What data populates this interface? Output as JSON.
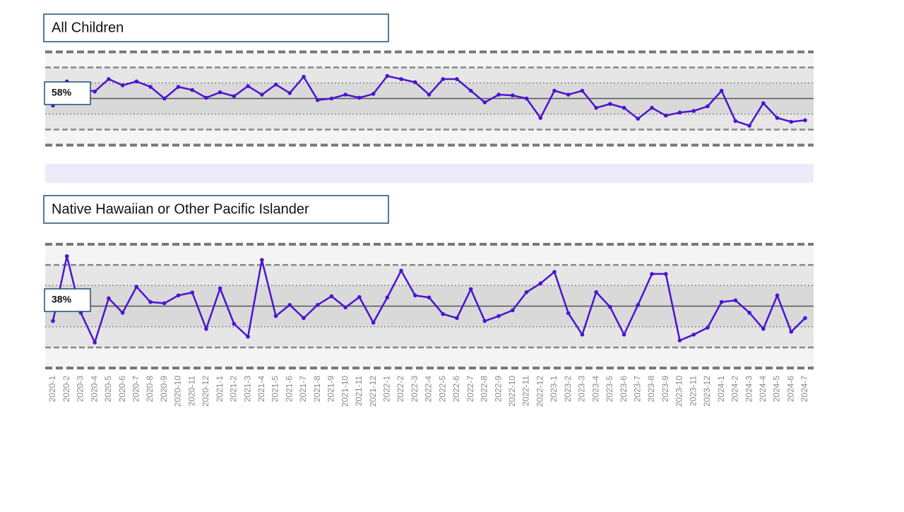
{
  "chart_data": [
    {
      "type": "line",
      "title": "All Children",
      "color": "#4b14cf",
      "values": [
        57.1,
        60.2,
        59.3,
        58.9,
        60.5,
        59.7,
        60.2,
        59.5,
        58,
        59.5,
        59.1,
        58.1,
        58.8,
        58.3,
        59.6,
        58.5,
        59.8,
        58.7,
        60.8,
        57.8,
        58,
        58.5,
        58.1,
        58.6,
        60.9,
        60.5,
        60.1,
        58.5,
        60.5,
        60.5,
        59,
        57.5,
        58.5,
        58.4,
        58,
        55.5,
        59,
        58.5,
        59,
        56.8,
        57.3,
        56.8,
        55.4,
        56.8,
        55.8,
        56.2,
        56.4,
        57,
        59,
        55.1,
        54.5,
        57.4,
        55.5,
        55,
        55.2
      ],
      "ylim": [
        51.5,
        64.5
      ],
      "center": 58,
      "center_label": "58%",
      "limits": [
        52,
        54,
        56,
        60,
        62,
        64
      ]
    },
    {
      "type": "line",
      "title": "Native Hawaiian or Other Pacific Islander",
      "color": "#4b14cf",
      "categories": [
        "2020-1",
        "2020-2",
        "2020-3",
        "2020-4",
        "2020-5",
        "2020-6",
        "2020-7",
        "2020-8",
        "2020-9",
        "2020-10",
        "2020-11",
        "2020-12",
        "2021-1",
        "2021-2",
        "2021-3",
        "2021-4",
        "2021-5",
        "2021-6",
        "2021-7",
        "2021-8",
        "2021-9",
        "2021-10",
        "2021-11",
        "2021-12",
        "2022-1",
        "2022-2",
        "2022-3",
        "2022-4",
        "2022-5",
        "2022-6",
        "2022-7",
        "2022-8",
        "2022-9",
        "2022-10",
        "2022-11",
        "2022-12",
        "2023-1",
        "2023-2",
        "2023-3",
        "2023-4",
        "2023-5",
        "2023-6",
        "2023-7",
        "2023-8",
        "2023-9",
        "2023-10",
        "2023-11",
        "2023-12",
        "2024-1",
        "2024-2",
        "2024-3",
        "2024-4",
        "2024-5",
        "2024-6",
        "2024-7"
      ],
      "values": [
        34.4,
        50.1,
        36.4,
        29.2,
        39.9,
        36.4,
        42.7,
        39,
        38.7,
        40.6,
        41.3,
        32.5,
        42.3,
        33.7,
        30.6,
        49.2,
        35.6,
        38.3,
        35.1,
        38.3,
        40.4,
        37.7,
        40.2,
        34,
        40.1,
        46.6,
        40.6,
        40.1,
        36.1,
        35.1,
        42.1,
        34.4,
        35.6,
        37,
        41.4,
        43.5,
        46.3,
        36.3,
        31.1,
        41.4,
        37.8,
        31.1,
        38.3,
        45.8,
        45.8,
        29.7,
        31.1,
        32.8,
        39,
        39.4,
        36.4,
        32.5,
        40.6,
        31.8,
        35.1
      ],
      "ylim": [
        22,
        54
      ],
      "center": 38,
      "center_label": "38%",
      "limits": [
        23,
        28,
        33,
        43,
        48,
        53
      ]
    }
  ]
}
